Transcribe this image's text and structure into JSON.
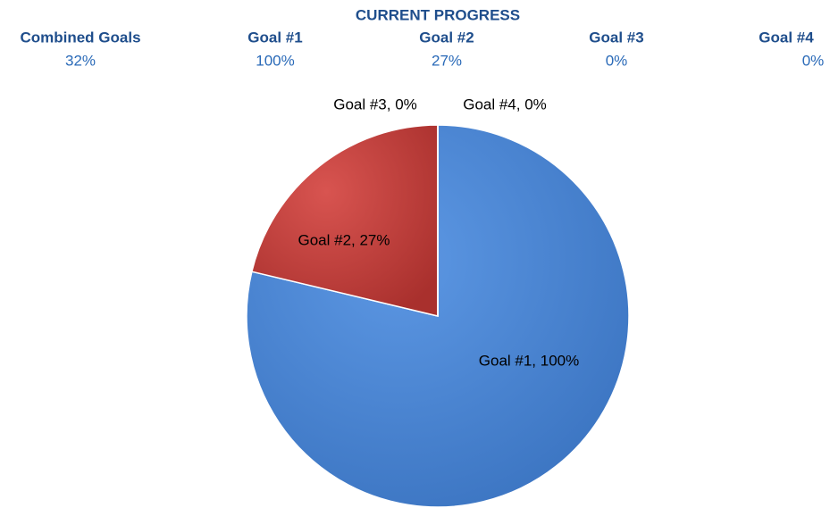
{
  "summary": {
    "columns": [
      {
        "label": "Combined Goals",
        "value": "32%"
      },
      {
        "label": "Goal #1",
        "value": "100%"
      },
      {
        "label": "Goal #2",
        "value": "27%"
      },
      {
        "label": "Goal #3",
        "value": "0%"
      },
      {
        "label": "Goal #4",
        "value": "0%"
      }
    ]
  },
  "chart_data": {
    "type": "pie",
    "title": "CURRENT PROGRESS",
    "categories": [
      "Goal #1",
      "Goal #2",
      "Goal #3",
      "Goal #4"
    ],
    "values": [
      100,
      27,
      0,
      0
    ],
    "value_labels": [
      "Goal #1, 100%",
      "Goal #2, 27%",
      "Goal #3, 0%",
      "Goal #4, 0%"
    ],
    "colors": [
      "#4a86d6",
      "#c9403c",
      "#9bbb59",
      "#8064a2"
    ]
  }
}
